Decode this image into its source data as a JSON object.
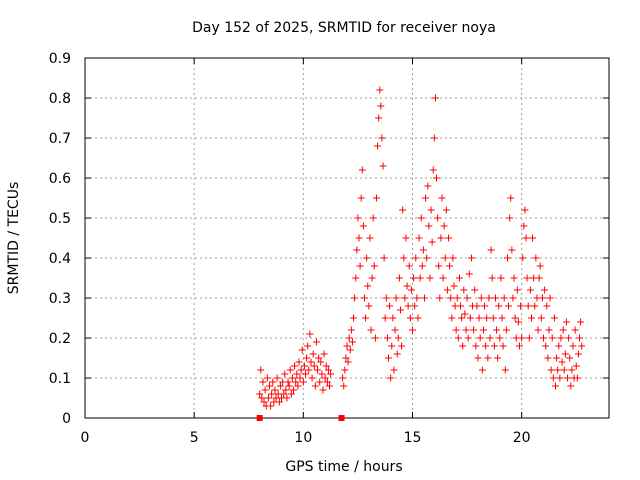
{
  "chart_data": {
    "type": "scatter",
    "title": "Day 152 of 2025, SRMTID for receiver noya",
    "xlabel": "GPS time / hours",
    "ylabel": "SRMTID / TECUs",
    "xlim": [
      0,
      24
    ],
    "ylim": [
      0,
      0.9
    ],
    "xticks": [
      0,
      5,
      10,
      15,
      20
    ],
    "yticks": [
      0,
      0.1,
      0.2,
      0.3,
      0.4,
      0.5,
      0.6,
      0.7,
      0.8,
      0.9
    ],
    "xtick_labels": [
      "0",
      "5",
      "10",
      "15",
      "20"
    ],
    "ytick_labels": [
      "0",
      "0.1",
      "0.2",
      "0.3",
      "0.4",
      "0.5",
      "0.6",
      "0.7",
      "0.8",
      "0.9"
    ],
    "grid": true,
    "marker": "+",
    "color": "#ff0000",
    "zero_markers": [
      {
        "x": 8.0,
        "y": 0
      },
      {
        "x": 11.75,
        "y": 0
      }
    ],
    "series": [
      {
        "name": "SRMTID",
        "points": [
          [
            8.0,
            0.06
          ],
          [
            8.05,
            0.12
          ],
          [
            8.1,
            0.05
          ],
          [
            8.15,
            0.09
          ],
          [
            8.2,
            0.04
          ],
          [
            8.25,
            0.07
          ],
          [
            8.3,
            0.03
          ],
          [
            8.35,
            0.1
          ],
          [
            8.4,
            0.05
          ],
          [
            8.45,
            0.08
          ],
          [
            8.5,
            0.03
          ],
          [
            8.55,
            0.06
          ],
          [
            8.6,
            0.09
          ],
          [
            8.65,
            0.04
          ],
          [
            8.7,
            0.07
          ],
          [
            8.75,
            0.05
          ],
          [
            8.8,
            0.1
          ],
          [
            8.85,
            0.06
          ],
          [
            8.9,
            0.04
          ],
          [
            8.95,
            0.08
          ],
          [
            9.0,
            0.05
          ],
          [
            9.05,
            0.09
          ],
          [
            9.1,
            0.06
          ],
          [
            9.15,
            0.11
          ],
          [
            9.2,
            0.07
          ],
          [
            9.25,
            0.05
          ],
          [
            9.3,
            0.09
          ],
          [
            9.35,
            0.08
          ],
          [
            9.4,
            0.12
          ],
          [
            9.45,
            0.06
          ],
          [
            9.5,
            0.1
          ],
          [
            9.55,
            0.07
          ],
          [
            9.6,
            0.13
          ],
          [
            9.65,
            0.09
          ],
          [
            9.7,
            0.11
          ],
          [
            9.75,
            0.08
          ],
          [
            9.8,
            0.14
          ],
          [
            9.85,
            0.1
          ],
          [
            9.9,
            0.12
          ],
          [
            9.95,
            0.17
          ],
          [
            10.0,
            0.09
          ],
          [
            10.05,
            0.13
          ],
          [
            10.1,
            0.11
          ],
          [
            10.15,
            0.15
          ],
          [
            10.2,
            0.18
          ],
          [
            10.25,
            0.12
          ],
          [
            10.3,
            0.21
          ],
          [
            10.35,
            0.14
          ],
          [
            10.4,
            0.1
          ],
          [
            10.45,
            0.16
          ],
          [
            10.5,
            0.13
          ],
          [
            10.55,
            0.08
          ],
          [
            10.6,
            0.19
          ],
          [
            10.65,
            0.12
          ],
          [
            10.7,
            0.15
          ],
          [
            10.75,
            0.09
          ],
          [
            10.8,
            0.14
          ],
          [
            10.85,
            0.11
          ],
          [
            10.9,
            0.07
          ],
          [
            10.95,
            0.16
          ],
          [
            11.0,
            0.1
          ],
          [
            11.05,
            0.13
          ],
          [
            11.1,
            0.09
          ],
          [
            11.15,
            0.12
          ],
          [
            11.2,
            0.08
          ],
          [
            11.25,
            0.11
          ],
          [
            11.8,
            0.1
          ],
          [
            11.85,
            0.08
          ],
          [
            11.9,
            0.12
          ],
          [
            11.95,
            0.15
          ],
          [
            12.0,
            0.18
          ],
          [
            12.05,
            0.14
          ],
          [
            12.1,
            0.2
          ],
          [
            12.15,
            0.17
          ],
          [
            12.2,
            0.22
          ],
          [
            12.25,
            0.19
          ],
          [
            12.3,
            0.25
          ],
          [
            12.35,
            0.3
          ],
          [
            12.4,
            0.35
          ],
          [
            12.45,
            0.42
          ],
          [
            12.5,
            0.5
          ],
          [
            12.55,
            0.45
          ],
          [
            12.6,
            0.38
          ],
          [
            12.65,
            0.55
          ],
          [
            12.7,
            0.62
          ],
          [
            12.75,
            0.48
          ],
          [
            12.8,
            0.3
          ],
          [
            12.85,
            0.25
          ],
          [
            12.9,
            0.4
          ],
          [
            12.95,
            0.33
          ],
          [
            13.0,
            0.28
          ],
          [
            13.05,
            0.45
          ],
          [
            13.1,
            0.22
          ],
          [
            13.15,
            0.35
          ],
          [
            13.2,
            0.5
          ],
          [
            13.25,
            0.38
          ],
          [
            13.3,
            0.2
          ],
          [
            13.35,
            0.55
          ],
          [
            13.4,
            0.68
          ],
          [
            13.45,
            0.75
          ],
          [
            13.5,
            0.82
          ],
          [
            13.55,
            0.78
          ],
          [
            13.6,
            0.7
          ],
          [
            13.65,
            0.63
          ],
          [
            13.7,
            0.4
          ],
          [
            13.75,
            0.25
          ],
          [
            13.8,
            0.3
          ],
          [
            13.85,
            0.2
          ],
          [
            13.9,
            0.15
          ],
          [
            13.95,
            0.28
          ],
          [
            14.0,
            0.1
          ],
          [
            14.05,
            0.18
          ],
          [
            14.1,
            0.25
          ],
          [
            14.15,
            0.12
          ],
          [
            14.2,
            0.22
          ],
          [
            14.25,
            0.3
          ],
          [
            14.3,
            0.16
          ],
          [
            14.35,
            0.2
          ],
          [
            14.4,
            0.35
          ],
          [
            14.45,
            0.27
          ],
          [
            14.5,
            0.18
          ],
          [
            14.55,
            0.52
          ],
          [
            14.6,
            0.4
          ],
          [
            14.65,
            0.3
          ],
          [
            14.7,
            0.45
          ],
          [
            14.75,
            0.33
          ],
          [
            14.8,
            0.28
          ],
          [
            14.85,
            0.38
          ],
          [
            14.9,
            0.25
          ],
          [
            14.95,
            0.32
          ],
          [
            15.0,
            0.22
          ],
          [
            15.05,
            0.35
          ],
          [
            15.1,
            0.28
          ],
          [
            15.15,
            0.4
          ],
          [
            15.2,
            0.3
          ],
          [
            15.25,
            0.25
          ],
          [
            15.3,
            0.45
          ],
          [
            15.35,
            0.35
          ],
          [
            15.4,
            0.5
          ],
          [
            15.45,
            0.38
          ],
          [
            15.5,
            0.42
          ],
          [
            15.55,
            0.3
          ],
          [
            15.6,
            0.55
          ],
          [
            15.65,
            0.4
          ],
          [
            15.7,
            0.58
          ],
          [
            15.75,
            0.48
          ],
          [
            15.8,
            0.35
          ],
          [
            15.85,
            0.52
          ],
          [
            15.9,
            0.44
          ],
          [
            15.95,
            0.62
          ],
          [
            16.0,
            0.7
          ],
          [
            16.05,
            0.8
          ],
          [
            16.1,
            0.6
          ],
          [
            16.15,
            0.5
          ],
          [
            16.2,
            0.38
          ],
          [
            16.25,
            0.3
          ],
          [
            16.3,
            0.45
          ],
          [
            16.35,
            0.55
          ],
          [
            16.4,
            0.35
          ],
          [
            16.45,
            0.48
          ],
          [
            16.5,
            0.4
          ],
          [
            16.55,
            0.52
          ],
          [
            16.6,
            0.32
          ],
          [
            16.65,
            0.45
          ],
          [
            16.7,
            0.38
          ],
          [
            16.75,
            0.3
          ],
          [
            16.8,
            0.25
          ],
          [
            16.85,
            0.4
          ],
          [
            16.9,
            0.33
          ],
          [
            16.95,
            0.28
          ],
          [
            17.0,
            0.22
          ],
          [
            17.05,
            0.3
          ],
          [
            17.1,
            0.2
          ],
          [
            17.15,
            0.35
          ],
          [
            17.2,
            0.28
          ],
          [
            17.25,
            0.25
          ],
          [
            17.3,
            0.18
          ],
          [
            17.35,
            0.32
          ],
          [
            17.4,
            0.26
          ],
          [
            17.45,
            0.22
          ],
          [
            17.5,
            0.3
          ],
          [
            17.55,
            0.2
          ],
          [
            17.6,
            0.36
          ],
          [
            17.65,
            0.25
          ],
          [
            17.7,
            0.4
          ],
          [
            17.75,
            0.28
          ],
          [
            17.8,
            0.22
          ],
          [
            17.85,
            0.32
          ],
          [
            17.9,
            0.18
          ],
          [
            17.95,
            0.28
          ],
          [
            18.0,
            0.15
          ],
          [
            18.05,
            0.25
          ],
          [
            18.1,
            0.2
          ],
          [
            18.15,
            0.3
          ],
          [
            18.2,
            0.12
          ],
          [
            18.25,
            0.22
          ],
          [
            18.3,
            0.28
          ],
          [
            18.35,
            0.18
          ],
          [
            18.4,
            0.25
          ],
          [
            18.45,
            0.15
          ],
          [
            18.5,
            0.3
          ],
          [
            18.55,
            0.2
          ],
          [
            18.6,
            0.42
          ],
          [
            18.65,
            0.35
          ],
          [
            18.7,
            0.25
          ],
          [
            18.75,
            0.18
          ],
          [
            18.8,
            0.3
          ],
          [
            18.85,
            0.22
          ],
          [
            18.9,
            0.15
          ],
          [
            18.95,
            0.28
          ],
          [
            19.0,
            0.2
          ],
          [
            19.05,
            0.35
          ],
          [
            19.1,
            0.25
          ],
          [
            19.15,
            0.18
          ],
          [
            19.2,
            0.3
          ],
          [
            19.25,
            0.12
          ],
          [
            19.3,
            0.22
          ],
          [
            19.35,
            0.4
          ],
          [
            19.4,
            0.28
          ],
          [
            19.45,
            0.5
          ],
          [
            19.5,
            0.55
          ],
          [
            19.55,
            0.42
          ],
          [
            19.6,
            0.3
          ],
          [
            19.65,
            0.35
          ],
          [
            19.7,
            0.25
          ],
          [
            19.75,
            0.2
          ],
          [
            19.8,
            0.32
          ],
          [
            19.85,
            0.24
          ],
          [
            19.9,
            0.18
          ],
          [
            19.95,
            0.28
          ],
          [
            20.0,
            0.2
          ],
          [
            20.05,
            0.4
          ],
          [
            20.1,
            0.48
          ],
          [
            20.15,
            0.52
          ],
          [
            20.2,
            0.45
          ],
          [
            20.25,
            0.35
          ],
          [
            20.3,
            0.28
          ],
          [
            20.35,
            0.2
          ],
          [
            20.4,
            0.32
          ],
          [
            20.45,
            0.25
          ],
          [
            20.5,
            0.45
          ],
          [
            20.55,
            0.35
          ],
          [
            20.6,
            0.28
          ],
          [
            20.65,
            0.4
          ],
          [
            20.7,
            0.3
          ],
          [
            20.75,
            0.22
          ],
          [
            20.8,
            0.35
          ],
          [
            20.85,
            0.38
          ],
          [
            20.9,
            0.25
          ],
          [
            20.95,
            0.3
          ],
          [
            21.0,
            0.2
          ],
          [
            21.05,
            0.32
          ],
          [
            21.1,
            0.18
          ],
          [
            21.15,
            0.28
          ],
          [
            21.2,
            0.15
          ],
          [
            21.25,
            0.22
          ],
          [
            21.3,
            0.3
          ],
          [
            21.35,
            0.12
          ],
          [
            21.4,
            0.2
          ],
          [
            21.45,
            0.1
          ],
          [
            21.5,
            0.25
          ],
          [
            21.55,
            0.08
          ],
          [
            21.6,
            0.15
          ],
          [
            21.65,
            0.12
          ],
          [
            21.7,
            0.18
          ],
          [
            21.75,
            0.1
          ],
          [
            21.8,
            0.2
          ],
          [
            21.85,
            0.14
          ],
          [
            21.9,
            0.22
          ],
          [
            21.95,
            0.12
          ],
          [
            22.0,
            0.16
          ],
          [
            22.05,
            0.24
          ],
          [
            22.1,
            0.1
          ],
          [
            22.15,
            0.2
          ],
          [
            22.2,
            0.15
          ],
          [
            22.25,
            0.08
          ],
          [
            22.3,
            0.12
          ],
          [
            22.35,
            0.18
          ],
          [
            22.4,
            0.1
          ],
          [
            22.45,
            0.22
          ],
          [
            22.5,
            0.13
          ],
          [
            22.55,
            0.1
          ],
          [
            22.6,
            0.16
          ],
          [
            22.65,
            0.2
          ],
          [
            22.7,
            0.24
          ],
          [
            22.75,
            0.18
          ]
        ]
      }
    ]
  }
}
